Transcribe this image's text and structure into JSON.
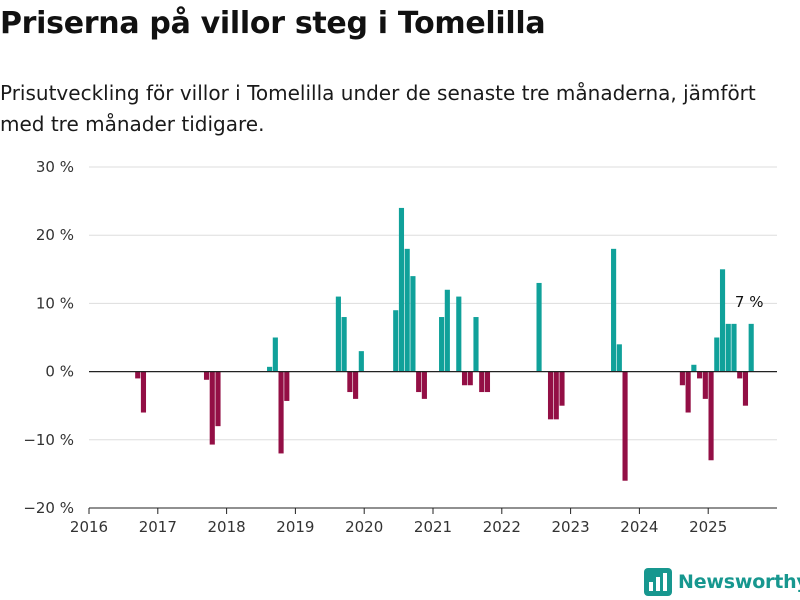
{
  "chart_data": {
    "type": "bar",
    "title": "Priserna på villor steg i Tomelilla",
    "subtitle": "Prisutveckling för villor i Tomelilla under de senaste tre månaderna, jämfört med tre månader tidigare.",
    "xlabel": "",
    "ylabel": "",
    "x_range": [
      "2016-01",
      "2026-01"
    ],
    "ylim": [
      -20,
      30
    ],
    "y_ticks": [
      "30 %",
      "20 %",
      "10 %",
      "0 %",
      "−10 %",
      "−20 %"
    ],
    "x_ticks": [
      "2016",
      "2017",
      "2018",
      "2019",
      "2020",
      "2021",
      "2022",
      "2023",
      "2024",
      "2025"
    ],
    "grid": true,
    "legend": "none",
    "colors": {
      "positive": "#10a19a",
      "negative": "#930f45"
    },
    "series": [
      {
        "months": [
          "2016-09",
          "2016-10",
          "2017-09",
          "2017-10",
          "2017-11",
          "2018-08",
          "2018-09",
          "2018-10",
          "2018-11",
          "2019-08",
          "2019-09",
          "2019-10",
          "2019-11",
          "2019-12",
          "2020-06",
          "2020-07",
          "2020-08",
          "2020-09",
          "2020-10",
          "2020-11",
          "2020-12",
          "2021-02",
          "2021-03",
          "2021-05",
          "2021-06",
          "2021-07",
          "2021-08",
          "2021-09",
          "2021-10",
          "2022-07",
          "2022-09",
          "2022-10",
          "2022-11",
          "2023-08",
          "2023-09",
          "2023-10",
          "2024-08",
          "2024-09",
          "2024-10",
          "2024-11",
          "2024-12",
          "2025-01",
          "2025-02",
          "2025-03",
          "2025-04",
          "2025-05",
          "2025-06",
          "2025-07",
          "2025-08"
        ],
        "values": [
          -1,
          -6,
          -1.2,
          -10.7,
          -8,
          0.7,
          5,
          -12,
          -4.3,
          11,
          8,
          -3,
          -4,
          3,
          9,
          24,
          18,
          14,
          -3,
          -4,
          0,
          8,
          12,
          11,
          -2,
          -2,
          8,
          -3,
          -3,
          13,
          -7,
          -7,
          -5,
          18,
          4,
          -16,
          -2,
          -6,
          1,
          -1,
          -4,
          -13,
          5,
          15,
          7,
          7,
          -1,
          -5,
          7
        ]
      }
    ],
    "annotations": [
      {
        "label": "7 %",
        "month": "2025-08",
        "value": 7
      }
    ],
    "source_logo": "Newsworthy"
  }
}
